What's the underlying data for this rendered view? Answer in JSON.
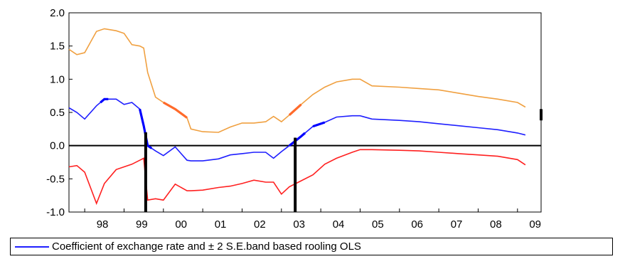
{
  "chart_data": {
    "type": "line",
    "title": "",
    "xlabel": "",
    "ylabel": "",
    "ylim": [
      -1.0,
      2.0
    ],
    "yticks": [
      "2.0",
      "1.5",
      "1.0",
      "0.5",
      "0.0",
      "-0.5",
      "-1.0"
    ],
    "xlim": [
      1997.6,
      2009.6
    ],
    "xticks": [
      "98",
      "99",
      "00",
      "01",
      "02",
      "03",
      "04",
      "05",
      "06",
      "07",
      "08",
      "09"
    ],
    "grid": false,
    "zero_line": 0.0,
    "legend": {
      "position": "bottom",
      "label": "Coefficient of exchange rate and ± 2 S.E.band based rooling OLS",
      "color": "#1f1fff"
    },
    "series": [
      {
        "role": "upper",
        "color": "#f0a040",
        "x": [
          1997.6,
          1997.8,
          1998.0,
          1998.3,
          1998.5,
          1998.8,
          1999.0,
          1999.2,
          1999.4,
          1999.5,
          1999.6,
          1999.8,
          2000.0,
          2000.3,
          2000.6,
          2000.7,
          2001.0,
          2001.4,
          2001.7,
          2002.0,
          2002.3,
          2002.6,
          2002.8,
          2003.0,
          2003.2,
          2003.5,
          2003.8,
          2004.1,
          2004.4,
          2004.8,
          2005.0,
          2005.3,
          2006.0,
          2006.5,
          2007.0,
          2007.5,
          2008.0,
          2008.5,
          2009.0,
          2009.2
        ],
        "y": [
          1.45,
          1.37,
          1.4,
          1.72,
          1.76,
          1.73,
          1.69,
          1.52,
          1.5,
          1.47,
          1.1,
          0.73,
          0.65,
          0.55,
          0.42,
          0.25,
          0.21,
          0.2,
          0.28,
          0.34,
          0.34,
          0.36,
          0.44,
          0.36,
          0.46,
          0.62,
          0.77,
          0.88,
          0.96,
          1.0,
          1.0,
          0.9,
          0.88,
          0.86,
          0.84,
          0.79,
          0.74,
          0.7,
          0.65,
          0.58
        ]
      },
      {
        "role": "coefficient",
        "color": "#1f1fff",
        "x": [
          1997.6,
          1997.8,
          1998.0,
          1998.3,
          1998.5,
          1998.8,
          1999.0,
          1999.2,
          1999.4,
          1999.5,
          1999.6,
          1999.8,
          2000.0,
          2000.3,
          2000.6,
          2000.7,
          2001.0,
          2001.4,
          2001.7,
          2002.0,
          2002.3,
          2002.6,
          2002.8,
          2003.0,
          2003.2,
          2003.5,
          2003.8,
          2004.1,
          2004.4,
          2004.8,
          2005.0,
          2005.3,
          2006.0,
          2006.5,
          2007.0,
          2007.5,
          2008.0,
          2008.5,
          2009.0,
          2009.2
        ],
        "y": [
          0.57,
          0.5,
          0.4,
          0.6,
          0.7,
          0.7,
          0.62,
          0.65,
          0.55,
          0.3,
          0.0,
          -0.08,
          -0.15,
          -0.02,
          -0.22,
          -0.23,
          -0.23,
          -0.2,
          -0.14,
          -0.12,
          -0.1,
          -0.1,
          -0.19,
          -0.09,
          0.0,
          0.14,
          0.29,
          0.35,
          0.43,
          0.45,
          0.45,
          0.4,
          0.38,
          0.36,
          0.33,
          0.3,
          0.27,
          0.24,
          0.19,
          0.16
        ]
      },
      {
        "role": "lower",
        "color": "#ff2020",
        "x": [
          1997.6,
          1997.8,
          1998.0,
          1998.3,
          1998.5,
          1998.8,
          1999.0,
          1999.2,
          1999.4,
          1999.5,
          1999.6,
          1999.8,
          2000.0,
          2000.3,
          2000.6,
          2000.7,
          2001.0,
          2001.4,
          2001.7,
          2002.0,
          2002.3,
          2002.6,
          2002.8,
          2003.0,
          2003.2,
          2003.5,
          2003.8,
          2004.1,
          2004.4,
          2004.8,
          2005.0,
          2005.3,
          2006.0,
          2006.5,
          2007.0,
          2007.5,
          2008.0,
          2008.5,
          2009.0,
          2009.2
        ],
        "y": [
          -0.32,
          -0.3,
          -0.4,
          -0.87,
          -0.57,
          -0.36,
          -0.32,
          -0.28,
          -0.22,
          -0.19,
          -0.82,
          -0.8,
          -0.82,
          -0.58,
          -0.68,
          -0.68,
          -0.67,
          -0.63,
          -0.61,
          -0.57,
          -0.52,
          -0.55,
          -0.55,
          -0.73,
          -0.62,
          -0.53,
          -0.44,
          -0.28,
          -0.19,
          -0.1,
          -0.06,
          -0.06,
          -0.07,
          -0.08,
          -0.1,
          -0.12,
          -0.14,
          -0.16,
          -0.21,
          -0.29
        ]
      }
    ],
    "highlight_segments": [
      {
        "series": "upper",
        "color": "#ff6a2a",
        "x0": 2000.0,
        "x1": 2000.6
      },
      {
        "series": "upper",
        "color": "#ff6a2a",
        "x0": 2003.2,
        "x1": 2003.5
      },
      {
        "series": "coefficient",
        "color": "#0000ff",
        "x0": 1998.4,
        "x1": 1998.6
      },
      {
        "series": "coefficient",
        "color": "#0000ff",
        "x0": 1999.4,
        "x1": 1999.7
      },
      {
        "series": "coefficient",
        "color": "#0000ff",
        "x0": 2003.2,
        "x1": 2003.6
      },
      {
        "series": "coefficient",
        "color": "#0000ff",
        "x0": 2003.8,
        "x1": 2004.1
      }
    ],
    "vertical_markers": [
      1999.55,
      2003.35,
      2009.6
    ]
  }
}
